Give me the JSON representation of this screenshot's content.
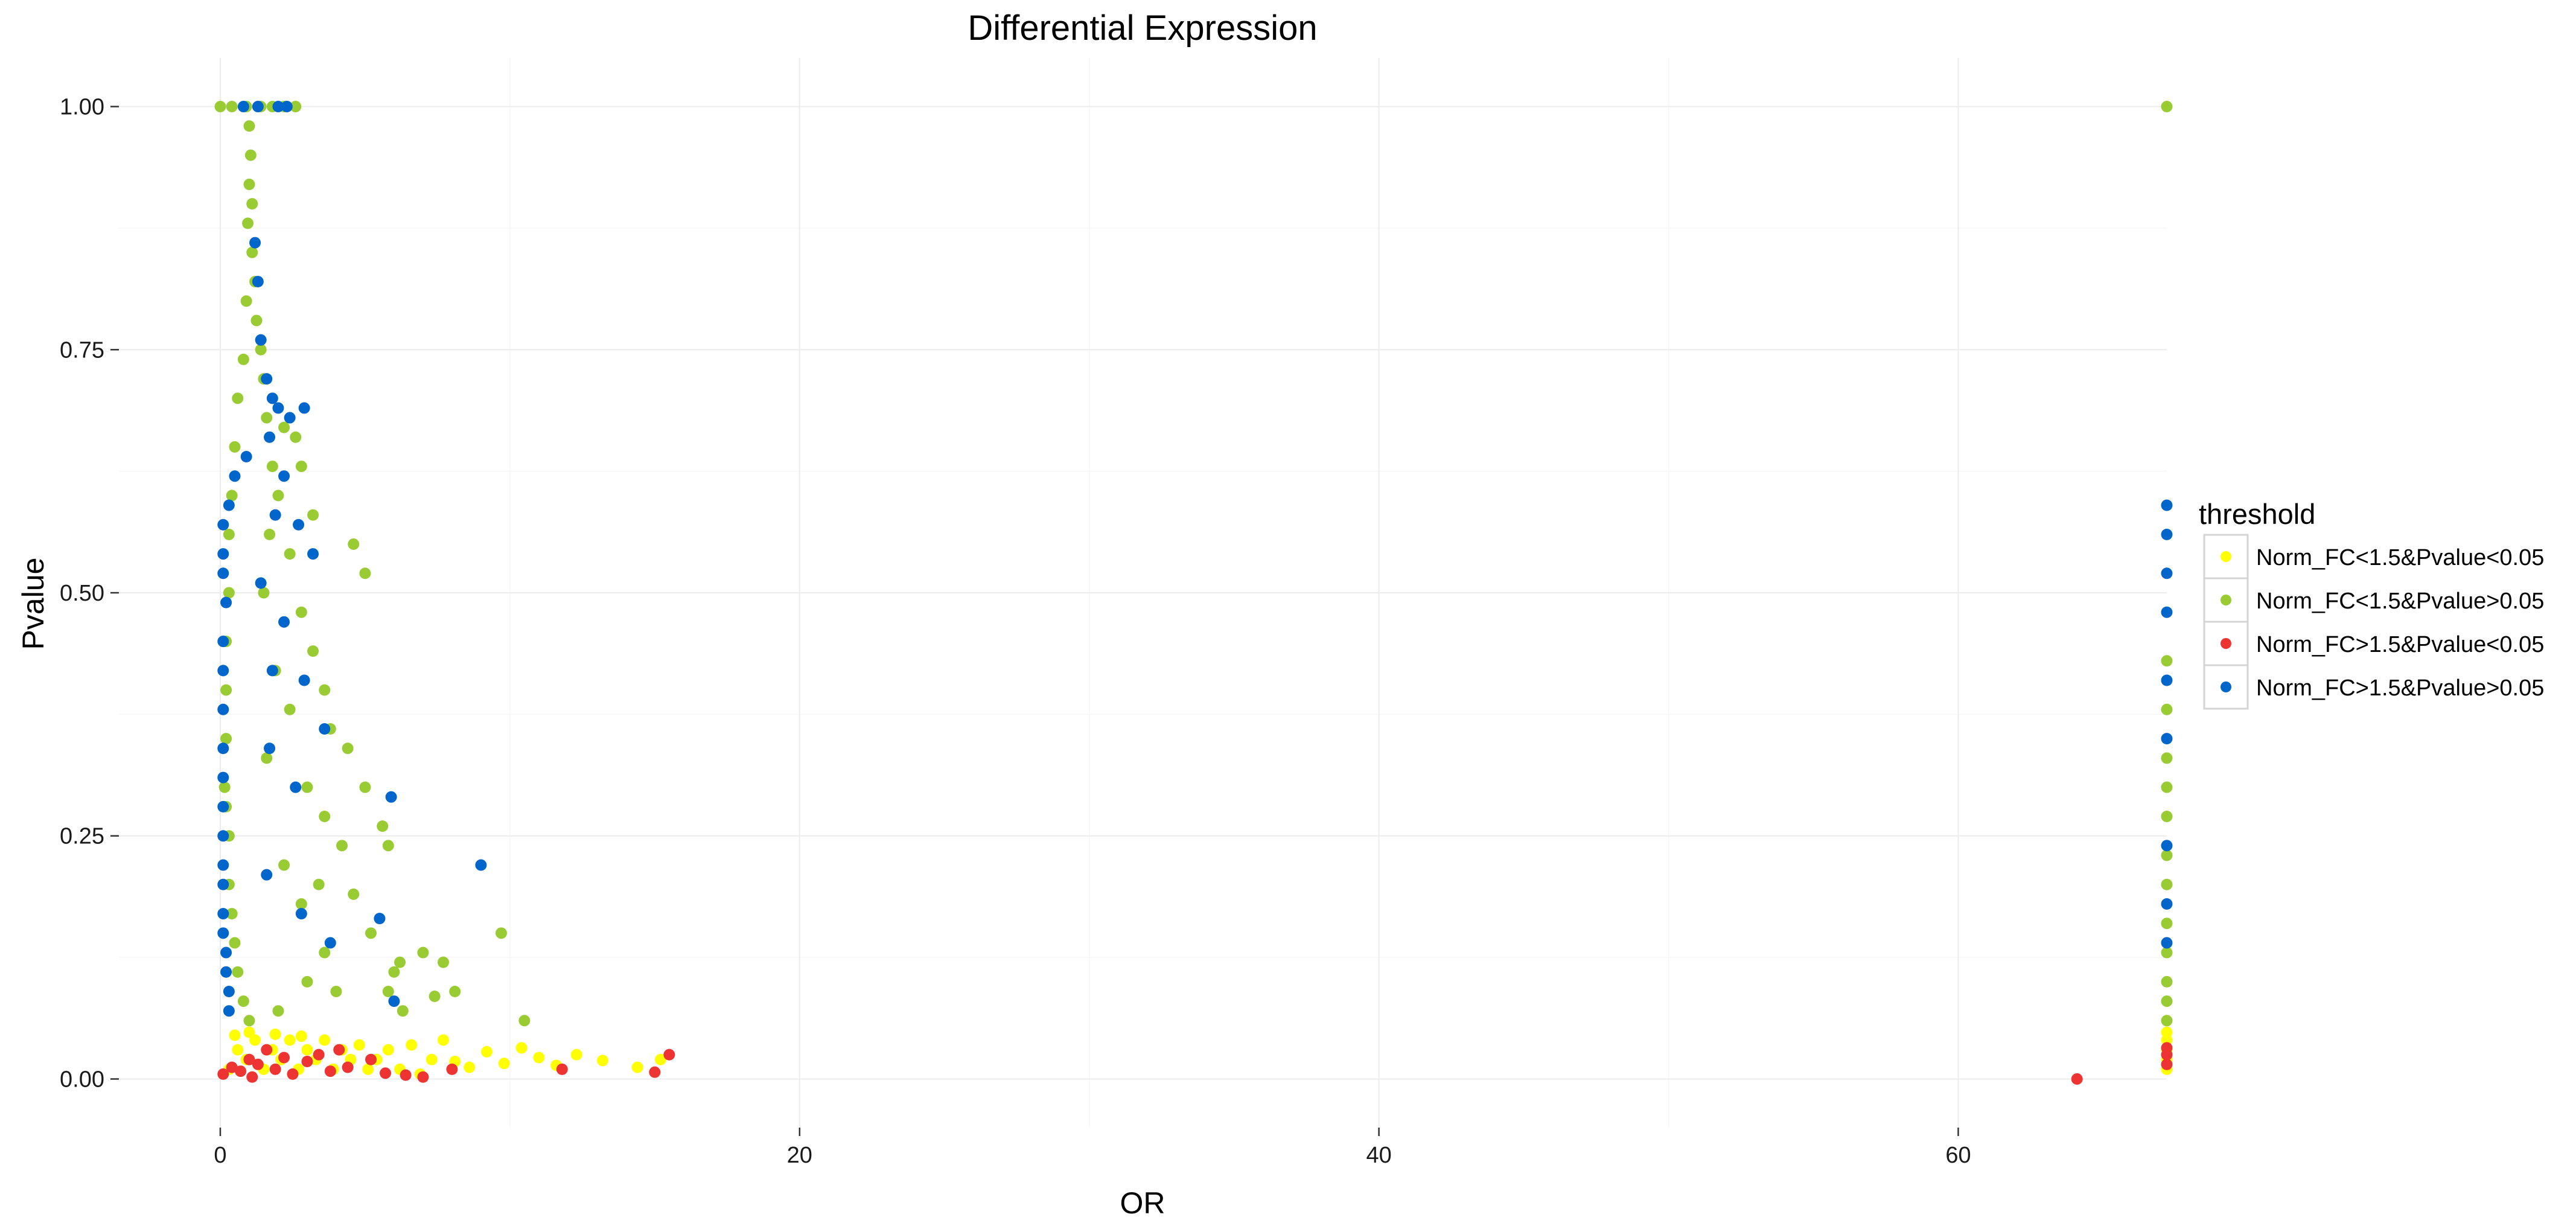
{
  "chart_data": {
    "type": "scatter",
    "title": "Differential Expression",
    "xlabel": "OR",
    "ylabel": "Pvalue",
    "xlim": [
      -3.5,
      67.2
    ],
    "ylim": [
      -0.05,
      1.05
    ],
    "x_ticks": [
      0,
      20,
      40,
      60
    ],
    "x_tick_labels": [
      "0",
      "20",
      "40",
      "60"
    ],
    "y_ticks": [
      0,
      0.25,
      0.5,
      0.75,
      1.0
    ],
    "y_tick_labels": [
      "0.00",
      "0.25",
      "0.50",
      "0.75",
      "1.00"
    ],
    "grid": true,
    "legend": {
      "title": "threshold",
      "position": "right",
      "entries": [
        {
          "label": "Norm_FC<1.5&Pvalue<0.05",
          "color": "#ffff00"
        },
        {
          "label": "Norm_FC<1.5&Pvalue>0.05",
          "color": "#99cc33"
        },
        {
          "label": "Norm_FC>1.5&Pvalue<0.05",
          "color": "#ee3333"
        },
        {
          "label": "Norm_FC>1.5&Pvalue>0.05",
          "color": "#0066cc"
        }
      ]
    },
    "series": [
      {
        "name": "Norm_FC<1.5&Pvalue<0.05",
        "color": "#ffff00",
        "points": [
          [
            0.3,
            0.01
          ],
          [
            0.6,
            0.03
          ],
          [
            0.9,
            0.02
          ],
          [
            1.2,
            0.04
          ],
          [
            1.5,
            0.01
          ],
          [
            1.8,
            0.03
          ],
          [
            2.1,
            0.02
          ],
          [
            2.4,
            0.04
          ],
          [
            2.7,
            0.01
          ],
          [
            3.0,
            0.03
          ],
          [
            3.3,
            0.02
          ],
          [
            3.6,
            0.04
          ],
          [
            3.9,
            0.01
          ],
          [
            4.2,
            0.03
          ],
          [
            4.5,
            0.02
          ],
          [
            4.8,
            0.035
          ],
          [
            5.1,
            0.01
          ],
          [
            5.4,
            0.02
          ],
          [
            5.8,
            0.03
          ],
          [
            6.2,
            0.01
          ],
          [
            6.6,
            0.035
          ],
          [
            6.9,
            0.005
          ],
          [
            7.3,
            0.02
          ],
          [
            7.7,
            0.04
          ],
          [
            8.1,
            0.018
          ],
          [
            8.6,
            0.012
          ],
          [
            9.2,
            0.028
          ],
          [
            9.8,
            0.016
          ],
          [
            10.4,
            0.032
          ],
          [
            11.0,
            0.022
          ],
          [
            11.6,
            0.014
          ],
          [
            12.3,
            0.025
          ],
          [
            13.2,
            0.019
          ],
          [
            14.4,
            0.012
          ],
          [
            15.2,
            0.02
          ],
          [
            0.5,
            0.045
          ],
          [
            1.0,
            0.048
          ],
          [
            1.9,
            0.046
          ],
          [
            2.8,
            0.044
          ],
          [
            67.2,
            0.01
          ],
          [
            67.2,
            0.02
          ],
          [
            67.2,
            0.03
          ],
          [
            67.2,
            0.04
          ],
          [
            67.2,
            0.048
          ]
        ]
      },
      {
        "name": "Norm_FC<1.5&Pvalue>0.05",
        "color": "#99cc33",
        "points": [
          [
            0,
            1.0
          ],
          [
            0.4,
            1.0
          ],
          [
            0.9,
            1.0
          ],
          [
            1.4,
            1.0
          ],
          [
            1.8,
            1.0
          ],
          [
            2.2,
            1.0
          ],
          [
            2.6,
            1.0
          ],
          [
            67.2,
            1.0
          ],
          [
            1.0,
            0.98
          ],
          [
            1.05,
            0.95
          ],
          [
            1.0,
            0.92
          ],
          [
            1.1,
            0.9
          ],
          [
            0.95,
            0.88
          ],
          [
            1.1,
            0.85
          ],
          [
            1.2,
            0.82
          ],
          [
            0.9,
            0.8
          ],
          [
            1.25,
            0.78
          ],
          [
            1.4,
            0.75
          ],
          [
            0.8,
            0.74
          ],
          [
            1.5,
            0.72
          ],
          [
            0.6,
            0.7
          ],
          [
            1.6,
            0.68
          ],
          [
            2.2,
            0.67
          ],
          [
            2.6,
            0.66
          ],
          [
            0.5,
            0.65
          ],
          [
            1.8,
            0.63
          ],
          [
            2.8,
            0.63
          ],
          [
            0.4,
            0.6
          ],
          [
            2.0,
            0.6
          ],
          [
            3.2,
            0.58
          ],
          [
            0.3,
            0.56
          ],
          [
            1.7,
            0.56
          ],
          [
            4.6,
            0.55
          ],
          [
            2.4,
            0.54
          ],
          [
            5.0,
            0.52
          ],
          [
            0.3,
            0.5
          ],
          [
            1.5,
            0.5
          ],
          [
            2.8,
            0.48
          ],
          [
            0.2,
            0.45
          ],
          [
            3.2,
            0.44
          ],
          [
            1.9,
            0.42
          ],
          [
            0.2,
            0.4
          ],
          [
            3.6,
            0.4
          ],
          [
            2.4,
            0.38
          ],
          [
            0.2,
            0.35
          ],
          [
            3.8,
            0.36
          ],
          [
            1.6,
            0.33
          ],
          [
            0.15,
            0.3
          ],
          [
            3.0,
            0.3
          ],
          [
            4.4,
            0.34
          ],
          [
            5.0,
            0.3
          ],
          [
            0.2,
            0.28
          ],
          [
            3.6,
            0.27
          ],
          [
            5.6,
            0.26
          ],
          [
            0.3,
            0.25
          ],
          [
            4.2,
            0.24
          ],
          [
            2.2,
            0.22
          ],
          [
            5.8,
            0.24
          ],
          [
            0.3,
            0.2
          ],
          [
            3.4,
            0.2
          ],
          [
            4.6,
            0.19
          ],
          [
            0.4,
            0.17
          ],
          [
            2.8,
            0.18
          ],
          [
            5.2,
            0.15
          ],
          [
            0.5,
            0.14
          ],
          [
            3.6,
            0.13
          ],
          [
            6.2,
            0.12
          ],
          [
            7.0,
            0.13
          ],
          [
            0.6,
            0.11
          ],
          [
            3.0,
            0.1
          ],
          [
            6.0,
            0.11
          ],
          [
            7.7,
            0.12
          ],
          [
            0.8,
            0.08
          ],
          [
            4.0,
            0.09
          ],
          [
            5.8,
            0.09
          ],
          [
            7.4,
            0.085
          ],
          [
            8.1,
            0.09
          ],
          [
            9.7,
            0.15
          ],
          [
            10.5,
            0.06
          ],
          [
            1.0,
            0.06
          ],
          [
            2.0,
            0.07
          ],
          [
            6.3,
            0.07
          ],
          [
            67.2,
            0.43
          ],
          [
            67.2,
            0.38
          ],
          [
            67.2,
            0.33
          ],
          [
            67.2,
            0.3
          ],
          [
            67.2,
            0.27
          ],
          [
            67.2,
            0.23
          ],
          [
            67.2,
            0.2
          ],
          [
            67.2,
            0.16
          ],
          [
            67.2,
            0.13
          ],
          [
            67.2,
            0.1
          ],
          [
            67.2,
            0.08
          ],
          [
            67.2,
            0.06
          ]
        ]
      },
      {
        "name": "Norm_FC>1.5&Pvalue<0.05",
        "color": "#ee3333",
        "points": [
          [
            0.1,
            0.005
          ],
          [
            0.4,
            0.012
          ],
          [
            0.7,
            0.008
          ],
          [
            1.0,
            0.02
          ],
          [
            1.1,
            0.002
          ],
          [
            1.3,
            0.015
          ],
          [
            1.6,
            0.03
          ],
          [
            1.9,
            0.01
          ],
          [
            2.2,
            0.022
          ],
          [
            2.5,
            0.005
          ],
          [
            3.0,
            0.018
          ],
          [
            3.4,
            0.025
          ],
          [
            3.8,
            0.008
          ],
          [
            4.1,
            0.03
          ],
          [
            4.4,
            0.012
          ],
          [
            5.2,
            0.02
          ],
          [
            5.7,
            0.006
          ],
          [
            6.4,
            0.004
          ],
          [
            7.0,
            0.002
          ],
          [
            8.0,
            0.01
          ],
          [
            11.8,
            0.01
          ],
          [
            15.0,
            0.007
          ],
          [
            15.5,
            0.025
          ],
          [
            64.1,
            0.0
          ],
          [
            67.2,
            0.015
          ],
          [
            67.2,
            0.025
          ],
          [
            67.2,
            0.032
          ]
        ]
      },
      {
        "name": "Norm_FC>1.5&Pvalue>0.05",
        "color": "#0066cc",
        "points": [
          [
            0.8,
            1.0
          ],
          [
            1.3,
            1.0
          ],
          [
            2.0,
            1.0
          ],
          [
            2.3,
            1.0
          ],
          [
            1.2,
            0.86
          ],
          [
            1.3,
            0.82
          ],
          [
            1.4,
            0.76
          ],
          [
            1.6,
            0.72
          ],
          [
            1.8,
            0.7
          ],
          [
            2.0,
            0.69
          ],
          [
            2.4,
            0.68
          ],
          [
            2.9,
            0.69
          ],
          [
            1.7,
            0.66
          ],
          [
            0.9,
            0.64
          ],
          [
            0.5,
            0.62
          ],
          [
            2.2,
            0.62
          ],
          [
            0.3,
            0.59
          ],
          [
            1.9,
            0.58
          ],
          [
            0.1,
            0.57
          ],
          [
            2.7,
            0.57
          ],
          [
            0.1,
            0.54
          ],
          [
            3.2,
            0.54
          ],
          [
            0.1,
            0.52
          ],
          [
            1.4,
            0.51
          ],
          [
            0.2,
            0.49
          ],
          [
            2.2,
            0.47
          ],
          [
            0.1,
            0.45
          ],
          [
            0.1,
            0.42
          ],
          [
            1.8,
            0.42
          ],
          [
            2.9,
            0.41
          ],
          [
            0.1,
            0.38
          ],
          [
            3.6,
            0.36
          ],
          [
            0.1,
            0.34
          ],
          [
            1.7,
            0.34
          ],
          [
            0.1,
            0.31
          ],
          [
            2.6,
            0.3
          ],
          [
            0.1,
            0.28
          ],
          [
            0.1,
            0.25
          ],
          [
            5.9,
            0.29
          ],
          [
            0.1,
            0.22
          ],
          [
            1.6,
            0.21
          ],
          [
            0.1,
            0.2
          ],
          [
            9.0,
            0.22
          ],
          [
            0.1,
            0.17
          ],
          [
            2.8,
            0.17
          ],
          [
            0.1,
            0.15
          ],
          [
            3.8,
            0.14
          ],
          [
            0.2,
            0.13
          ],
          [
            5.5,
            0.165
          ],
          [
            0.2,
            0.11
          ],
          [
            6.0,
            0.08
          ],
          [
            0.3,
            0.09
          ],
          [
            0.3,
            0.07
          ],
          [
            67.2,
            0.59
          ],
          [
            67.2,
            0.56
          ],
          [
            67.2,
            0.52
          ],
          [
            67.2,
            0.48
          ],
          [
            67.2,
            0.41
          ],
          [
            67.2,
            0.35
          ],
          [
            67.2,
            0.24
          ],
          [
            67.2,
            0.18
          ],
          [
            67.2,
            0.14
          ]
        ]
      }
    ]
  }
}
